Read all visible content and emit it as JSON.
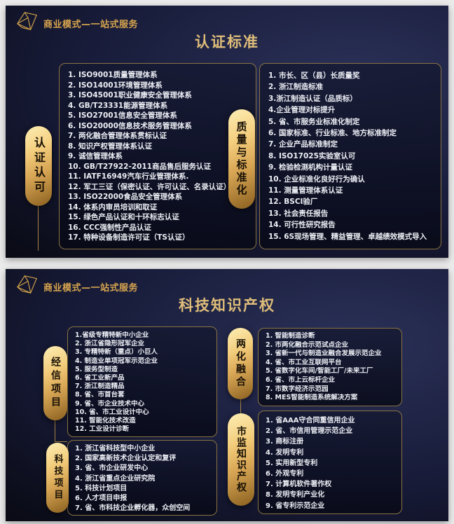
{
  "brand": "商业模式—一站式服务",
  "colors": {
    "page_bg": "#ebebeb",
    "slide_bg_dark": "#07080f",
    "slide_bg_navy": "#2b3158",
    "gold_accent": "#d7a54e",
    "title_gold": "#dfbd79",
    "box_border": "#8a7243",
    "item_text": "#eceef4",
    "capsule_text": "#181006"
  },
  "slides": [
    {
      "title": "认证标准",
      "groups": [
        {
          "label": "认证认可",
          "items": [
            "1. ISO9001质量管理体系",
            "2. ISO14001环境管理体系",
            "3. ISO45001职业健康安全管理体系",
            "4. GB/T23331能源管理体系",
            "5. ISO27001信息安全管理体系",
            "6. ISO20000信息技术服务管理体系",
            "7. 两化融合管理体系贯标认证",
            "8. 知识产权管理体系认证",
            "9. 诚信管理体系",
            "10. GB/T27922-2011商品售后服务认证",
            "11. IATF16949汽车行业管理体系.",
            "12. 军工三证（保密认证、许可认证、名录认证）",
            "13. ISO22000食品安全管理体系",
            "14. 体系内审员培训和取证",
            "15. 绿色产品认证和十环标志认证",
            "16. CCC强制性产品认证",
            "17. 特种设备制造许可证（TS认证）"
          ]
        },
        {
          "label": "质量与标准化",
          "items": [
            "1. 市长、区（县）长质量奖",
            "2. 浙江制造标准",
            "3.浙江制造认证（品质标）",
            "4.企业管理对标提升",
            "5. 省、市服务业标准化制定",
            "6. 国家标准、行业标准、地方标准制定",
            "7. 企业产品标准制定",
            "8. ISO17025实验室认可",
            "9. 检验检测机构计量认证",
            "10. 企业标准化良好行为确认",
            "11. 测量管理体系认证",
            "12. BSCI验厂",
            "13. 社会责任报告",
            "14. 可行性研究报告",
            "15. 6S现场管理、精益管理、卓越绩效模式导入"
          ]
        }
      ]
    },
    {
      "title": "科技知识产权",
      "groups": [
        {
          "label": "经信项目",
          "items": [
            "1.省级专精特新中小企业",
            "2. 浙江省隐形冠军企业",
            "3. 专精特新（重点）小巨人",
            "4. 制造业单项冠军示范企业",
            "5. 服务型制造",
            "6. 省工业新产品",
            "7. 浙江制造精品",
            "8. 省、市首台套",
            "9. 省、市企业技术中心",
            "10. 省、市工业设计中心",
            "11. 智能化技术改造",
            "12. 工业设计诊断"
          ]
        },
        {
          "label": "两化融合",
          "items": [
            "1. 智能制造诊断",
            "2. 市两化融合示范试点企业",
            "3. 省新一代与制造业融合发展示范企业",
            "4. 省、市工业互联网平台",
            "5. 省数字化车间/智能工厂/未来工厂",
            "6. 省、市上云标杆企业",
            "7. 市数字经济示范园",
            "8. MES智能制造系统解决方案"
          ]
        },
        {
          "label": "科技项目",
          "items": [
            "1. 浙江省科技型中小企业",
            "2. 国家高新技术企业认定和复评",
            "3. 省、市企业研发中心",
            "4. 浙江省重点企业研究院",
            "5. 科技计划项目",
            "6. 人才项目申报",
            "7. 省、市科技企业孵化器，众创空间"
          ]
        },
        {
          "label": "市监知识产权",
          "items": [
            "1. 省AAA守合同重信用企业",
            "2. 省、市信用管理示范企业",
            "3. 商标注册",
            "4. 发明专利",
            "5. 实用新型专利",
            "6. 外观专利",
            "7. 计算机软件著作权",
            "8. 发明专利产业化",
            "9. 省专利示范企业"
          ]
        }
      ]
    }
  ]
}
